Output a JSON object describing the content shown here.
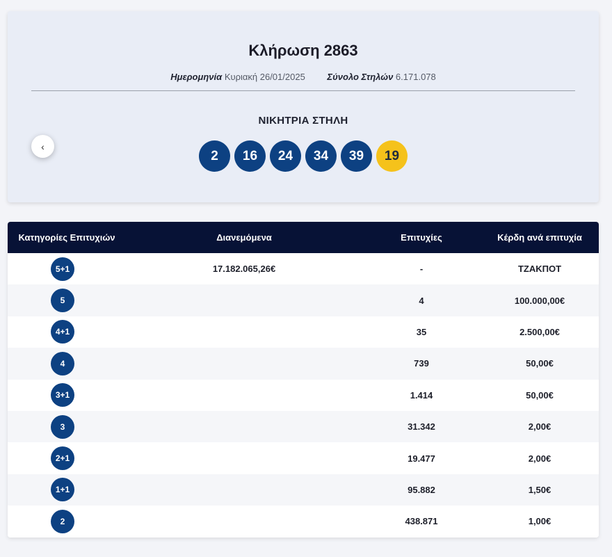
{
  "draw": {
    "title": "Κλήρωση 2863",
    "date_label": "Ημερομηνία",
    "date_value": "Κυριακή 26/01/2025",
    "total_label": "Σύνολο Στηλών",
    "total_value": "6.171.078",
    "winning_label": "ΝΙΚΗΤΡΙΑ ΣΤΗΛΗ",
    "numbers": [
      "2",
      "16",
      "24",
      "34",
      "39"
    ],
    "bonus": "19",
    "prev_icon": "chevron-left-icon",
    "prev_glyph": "‹"
  },
  "table": {
    "headers": {
      "category": "Κατηγορίες Επιτυχιών",
      "distributed": "Διανεμόμενα",
      "winners": "Επιτυχίες",
      "prize": "Κέρδη ανά επιτυχία"
    },
    "rows": [
      {
        "category": "5+1",
        "distributed": "17.182.065,26€",
        "winners": "-",
        "prize": "ΤΖΑΚΠΟΤ"
      },
      {
        "category": "5",
        "distributed": "",
        "winners": "4",
        "prize": "100.000,00€"
      },
      {
        "category": "4+1",
        "distributed": "",
        "winners": "35",
        "prize": "2.500,00€"
      },
      {
        "category": "4",
        "distributed": "",
        "winners": "739",
        "prize": "50,00€"
      },
      {
        "category": "3+1",
        "distributed": "",
        "winners": "1.414",
        "prize": "50,00€"
      },
      {
        "category": "3",
        "distributed": "",
        "winners": "31.342",
        "prize": "2,00€"
      },
      {
        "category": "2+1",
        "distributed": "",
        "winners": "19.477",
        "prize": "2,00€"
      },
      {
        "category": "1+1",
        "distributed": "",
        "winners": "95.882",
        "prize": "1,50€"
      },
      {
        "category": "2",
        "distributed": "",
        "winners": "438.871",
        "prize": "1,00€"
      }
    ]
  },
  "colors": {
    "ball": "#0d4182",
    "bonus": "#f5c21b",
    "header_bg": "#071236"
  }
}
